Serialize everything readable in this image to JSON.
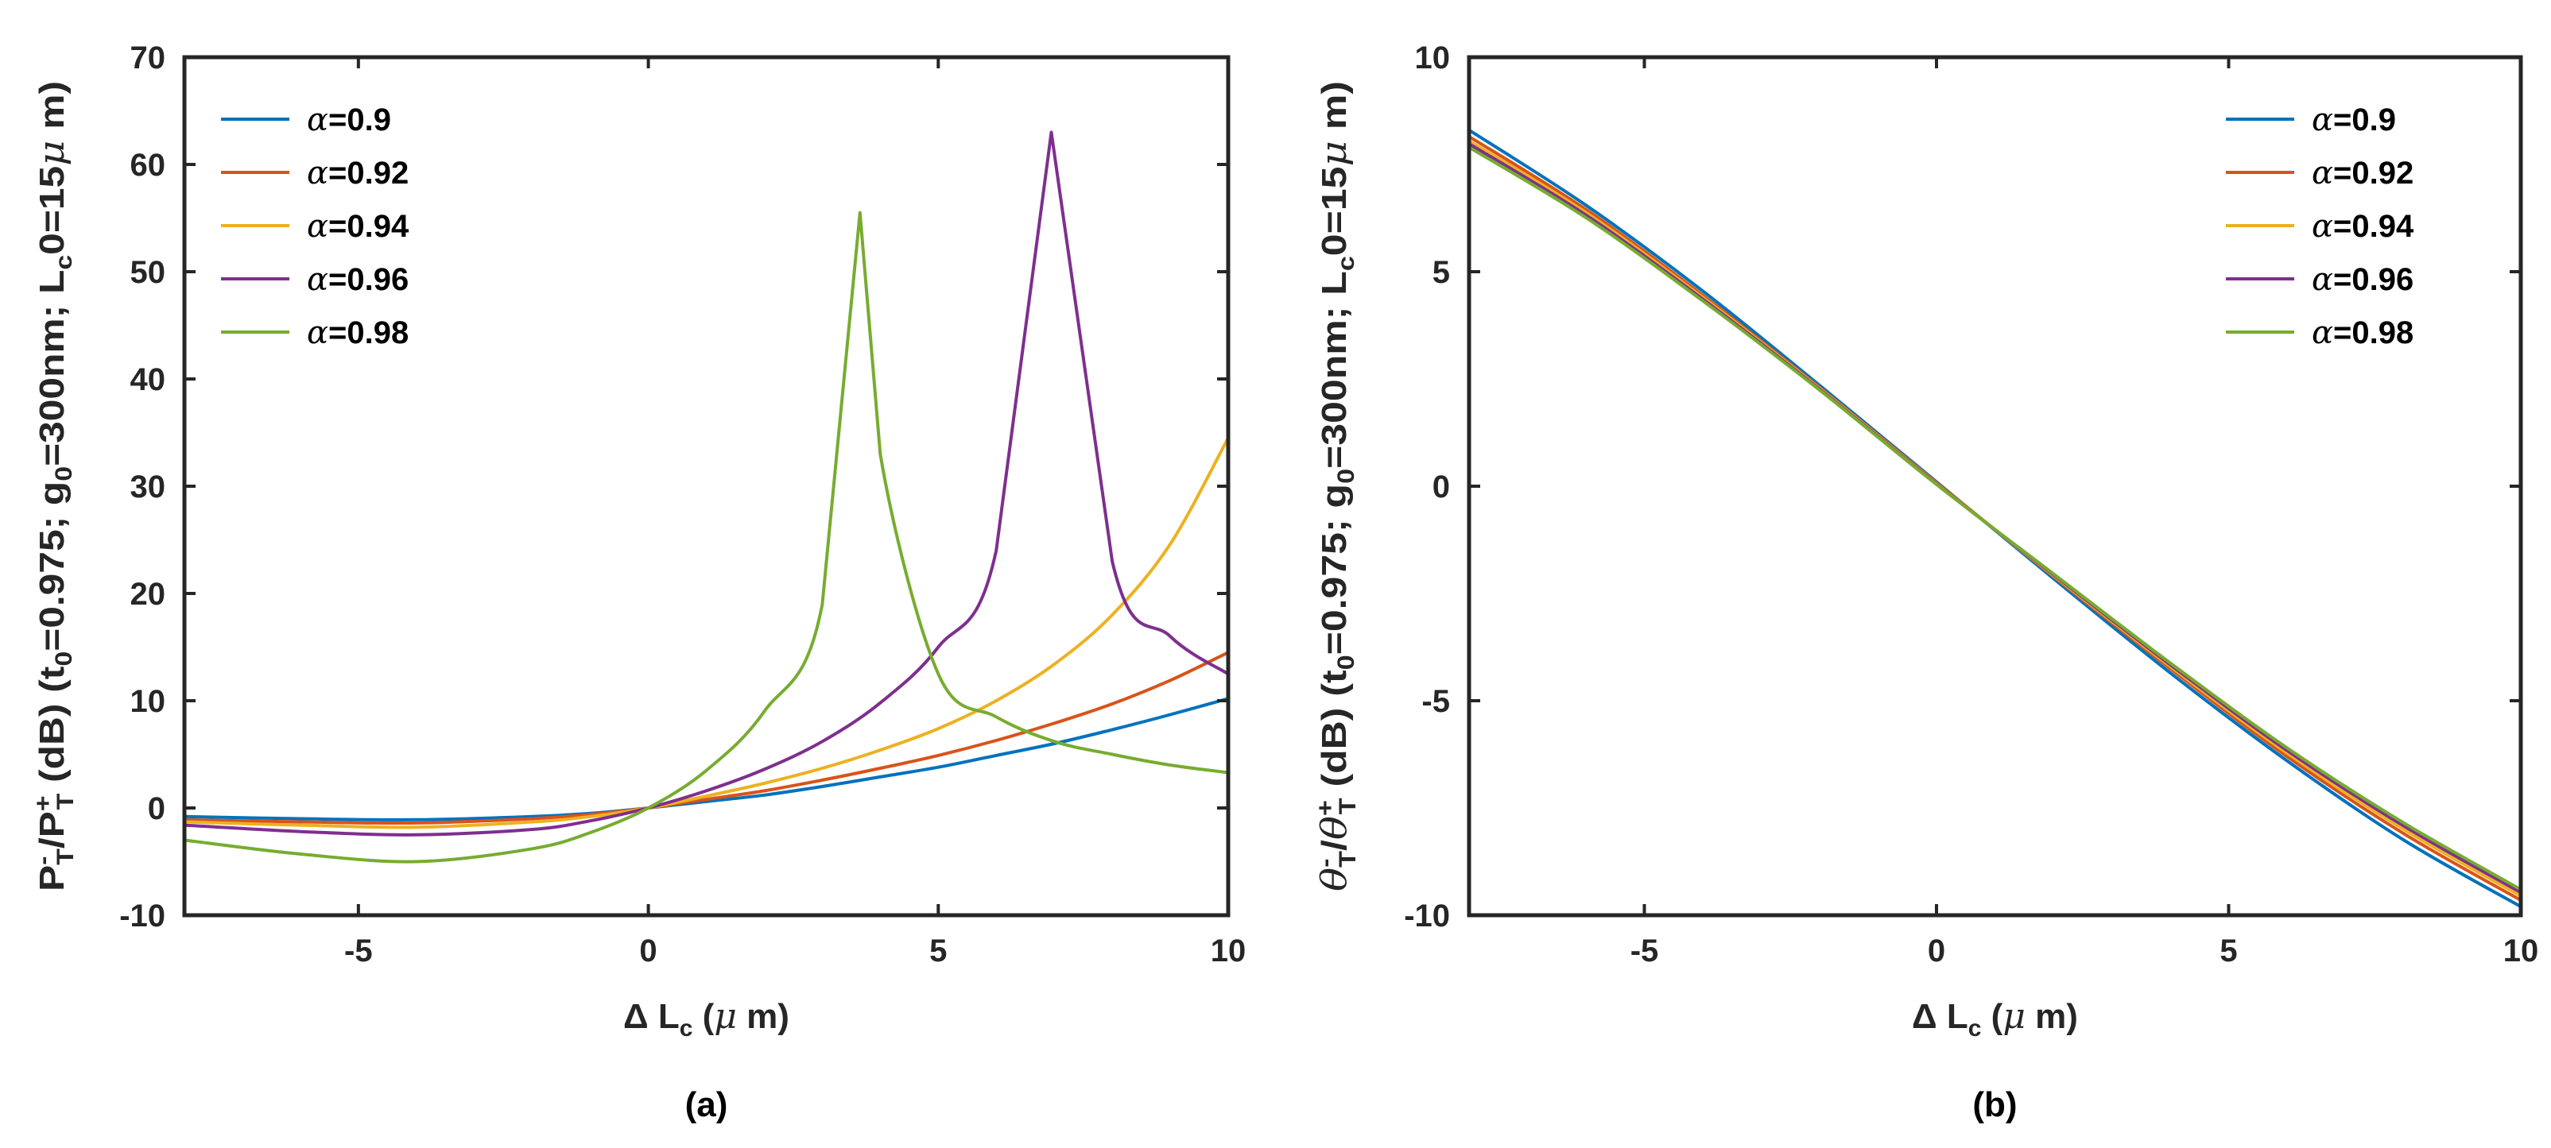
{
  "colors": {
    "alpha_0_9": "#0072BD",
    "alpha_0_92": "#D95319",
    "alpha_0_94": "#EDB120",
    "alpha_0_96": "#7E2F8E",
    "alpha_0_98": "#77AC30",
    "axis": "#262626"
  },
  "chart_data": [
    {
      "id": "a",
      "type": "line",
      "caption": "(a)",
      "xlabel": "Δ L_c (μ m)",
      "ylabel": "P_T^- / P_T^+ (dB) (t_0=0.975; g_0=300nm; L_c0=15μ m)",
      "xlim": [
        -8,
        10
      ],
      "ylim": [
        -10,
        70
      ],
      "xticks": [
        -5,
        0,
        5,
        10
      ],
      "xtick_labels": [
        "-5",
        "0",
        "5",
        "10"
      ],
      "yticks": [
        -10,
        0,
        10,
        20,
        30,
        40,
        50,
        60,
        70
      ],
      "ytick_labels": [
        "-10",
        "0",
        "10",
        "20",
        "30",
        "40",
        "50",
        "60",
        "70"
      ],
      "legend_position": "top-left",
      "grid": false,
      "x": [
        -8,
        -6,
        -4,
        -2,
        -1,
        0,
        1,
        2,
        3,
        4,
        5,
        6,
        7,
        8,
        9,
        10
      ],
      "series": [
        {
          "name": "α=0.9",
          "label_prefix": "α",
          "label_suffix": "=0.9",
          "color_key": "alpha_0_9",
          "values": [
            -0.8,
            -1.0,
            -1.1,
            -0.8,
            -0.5,
            0.0,
            0.6,
            1.2,
            2.0,
            2.9,
            3.8,
            4.9,
            6.0,
            7.3,
            8.7,
            10.2
          ]
        },
        {
          "name": "α=0.92",
          "label_prefix": "α",
          "label_suffix": "=0.92",
          "color_key": "alpha_0_92",
          "values": [
            -1.1,
            -1.3,
            -1.4,
            -1.0,
            -0.6,
            0.0,
            0.8,
            1.6,
            2.6,
            3.7,
            4.9,
            6.3,
            7.9,
            9.7,
            11.9,
            14.5
          ]
        },
        {
          "name": "α=0.94",
          "label_prefix": "α",
          "label_suffix": "=0.94",
          "color_key": "alpha_0_94",
          "values": [
            -1.3,
            -1.6,
            -1.8,
            -1.3,
            -0.8,
            0.0,
            1.1,
            2.3,
            3.7,
            5.4,
            7.4,
            10.0,
            13.4,
            18.0,
            24.6,
            34.5
          ]
        },
        {
          "name": "α=0.96",
          "label_prefix": "α",
          "label_suffix": "=0.96",
          "color_key": "alpha_0_96",
          "values": [
            -1.6,
            -2.2,
            -2.5,
            -2.0,
            -1.2,
            0.0,
            1.6,
            3.6,
            6.2,
            9.8,
            15.0,
            24.0,
            63.0,
            23.0,
            16.0,
            12.5
          ]
        },
        {
          "name": "α=0.98",
          "label_prefix": "α",
          "label_suffix": "=0.98",
          "color_key": "alpha_0_98",
          "values": [
            -3.0,
            -4.3,
            -5.0,
            -3.8,
            -2.3,
            0.0,
            3.5,
            9.0,
            19.0,
            33.0,
            12.5,
            8.5,
            6.2,
            5.0,
            4.0,
            3.3
          ]
        }
      ],
      "peak_points": [
        {
          "series": "α=0.96",
          "x": 6.95,
          "y": 63.0
        },
        {
          "series": "α=0.98",
          "x": 3.65,
          "y": 55.5
        }
      ]
    },
    {
      "id": "b",
      "type": "line",
      "caption": "(b)",
      "xlabel": "Δ L_c (μ m)",
      "ylabel": "θ_T^- / θ_T^+ (dB) (t_0=0.975; g_0=300nm; L_c0=15μ m)",
      "xlim": [
        -8,
        10
      ],
      "ylim": [
        -10,
        10
      ],
      "xticks": [
        -5,
        0,
        5,
        10
      ],
      "xtick_labels": [
        "-5",
        "0",
        "5",
        "10"
      ],
      "yticks": [
        -10,
        -5,
        0,
        5,
        10
      ],
      "ytick_labels": [
        "-10",
        "-5",
        "0",
        "5",
        "10"
      ],
      "legend_position": "top-right",
      "grid": false,
      "x": [
        -8,
        -6,
        -4,
        -2,
        0,
        2,
        4,
        6,
        8,
        10
      ],
      "series": [
        {
          "name": "α=0.9",
          "label_prefix": "α",
          "label_suffix": "=0.9",
          "color_key": "alpha_0_9",
          "values": [
            8.3,
            6.55,
            4.55,
            2.35,
            0.1,
            -2.15,
            -4.35,
            -6.4,
            -8.25,
            -9.8
          ]
        },
        {
          "name": "α=0.92",
          "label_prefix": "α",
          "label_suffix": "=0.92",
          "color_key": "alpha_0_92",
          "values": [
            8.15,
            6.45,
            4.45,
            2.3,
            0.08,
            -2.1,
            -4.25,
            -6.3,
            -8.1,
            -9.65
          ]
        },
        {
          "name": "α=0.94",
          "label_prefix": "α",
          "label_suffix": "=0.94",
          "color_key": "alpha_0_94",
          "values": [
            8.05,
            6.38,
            4.4,
            2.28,
            0.06,
            -2.08,
            -4.2,
            -6.22,
            -8.0,
            -9.55
          ]
        },
        {
          "name": "α=0.96",
          "label_prefix": "α",
          "label_suffix": "=0.96",
          "color_key": "alpha_0_96",
          "values": [
            7.98,
            6.32,
            4.36,
            2.26,
            0.05,
            -2.06,
            -4.16,
            -6.16,
            -7.92,
            -9.47
          ]
        },
        {
          "name": "α=0.98",
          "label_prefix": "α",
          "label_suffix": "=0.98",
          "color_key": "alpha_0_98",
          "values": [
            7.9,
            6.26,
            4.32,
            2.24,
            0.04,
            -2.04,
            -4.12,
            -6.1,
            -7.85,
            -9.4
          ]
        }
      ]
    }
  ]
}
